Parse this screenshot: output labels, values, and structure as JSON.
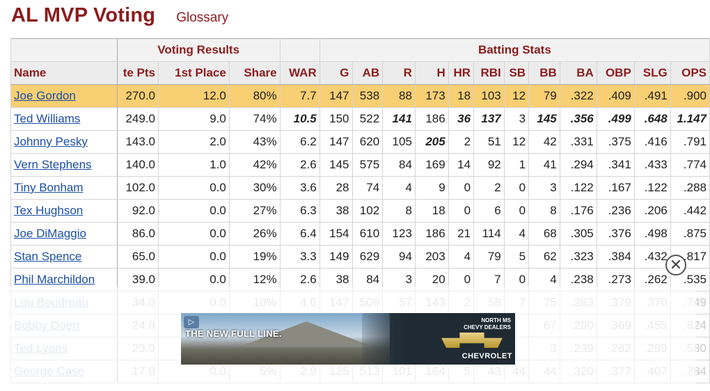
{
  "page": {
    "title": "AL MVP Voting",
    "glossary_link": "Glossary"
  },
  "table": {
    "groups": {
      "voting": "Voting Results",
      "batting": "Batting Stats"
    },
    "columns": [
      "Name",
      "te Pts",
      "1st Place",
      "Share",
      "WAR",
      "G",
      "AB",
      "R",
      "H",
      "HR",
      "RBI",
      "SB",
      "BB",
      "BA",
      "OBP",
      "SLG",
      "OPS"
    ],
    "rows": [
      {
        "name": "Joe Gordon",
        "pts": "270.0",
        "first": "12.0",
        "share": "80%",
        "war": "7.7",
        "g": "147",
        "ab": "538",
        "r": "88",
        "h": "173",
        "hr": "18",
        "rbi": "103",
        "sb": "12",
        "bb": "79",
        "ba": ".322",
        "obp": ".409",
        "slg": ".491",
        "ops": ".900"
      },
      {
        "name": "Ted Williams",
        "pts": "249.0",
        "first": "9.0",
        "share": "74%",
        "war": "10.5",
        "g": "150",
        "ab": "522",
        "r": "141",
        "h": "186",
        "hr": "36",
        "rbi": "137",
        "sb": "3",
        "bb": "145",
        "ba": ".356",
        "obp": ".499",
        "slg": ".648",
        "ops": "1.147"
      },
      {
        "name": "Johnny Pesky",
        "pts": "143.0",
        "first": "2.0",
        "share": "43%",
        "war": "6.2",
        "g": "147",
        "ab": "620",
        "r": "105",
        "h": "205",
        "hr": "2",
        "rbi": "51",
        "sb": "12",
        "bb": "42",
        "ba": ".331",
        "obp": ".375",
        "slg": ".416",
        "ops": ".791"
      },
      {
        "name": "Vern Stephens",
        "pts": "140.0",
        "first": "1.0",
        "share": "42%",
        "war": "2.6",
        "g": "145",
        "ab": "575",
        "r": "84",
        "h": "169",
        "hr": "14",
        "rbi": "92",
        "sb": "1",
        "bb": "41",
        "ba": ".294",
        "obp": ".341",
        "slg": ".433",
        "ops": ".774"
      },
      {
        "name": "Tiny Bonham",
        "pts": "102.0",
        "first": "0.0",
        "share": "30%",
        "war": "3.6",
        "g": "28",
        "ab": "74",
        "r": "4",
        "h": "9",
        "hr": "0",
        "rbi": "2",
        "sb": "0",
        "bb": "3",
        "ba": ".122",
        "obp": ".167",
        "slg": ".122",
        "ops": ".288"
      },
      {
        "name": "Tex Hughson",
        "pts": "92.0",
        "first": "0.0",
        "share": "27%",
        "war": "6.3",
        "g": "38",
        "ab": "102",
        "r": "8",
        "h": "18",
        "hr": "0",
        "rbi": "6",
        "sb": "0",
        "bb": "8",
        "ba": ".176",
        "obp": ".236",
        "slg": ".206",
        "ops": ".442"
      },
      {
        "name": "Joe DiMaggio",
        "pts": "86.0",
        "first": "0.0",
        "share": "26%",
        "war": "6.4",
        "g": "154",
        "ab": "610",
        "r": "123",
        "h": "186",
        "hr": "21",
        "rbi": "114",
        "sb": "4",
        "bb": "68",
        "ba": ".305",
        "obp": ".376",
        "slg": ".498",
        "ops": ".875"
      },
      {
        "name": "Stan Spence",
        "pts": "65.0",
        "first": "0.0",
        "share": "19%",
        "war": "3.3",
        "g": "149",
        "ab": "629",
        "r": "94",
        "h": "203",
        "hr": "4",
        "rbi": "79",
        "sb": "5",
        "bb": "62",
        "ba": ".323",
        "obp": ".384",
        "slg": ".432",
        "ops": ".817"
      },
      {
        "name": "Phil Marchildon",
        "pts": "39.0",
        "first": "0.0",
        "share": "12%",
        "war": "2.6",
        "g": "38",
        "ab": "84",
        "r": "3",
        "h": "20",
        "hr": "0",
        "rbi": "7",
        "sb": "0",
        "bb": "4",
        "ba": ".238",
        "obp": ".273",
        "slg": ".262",
        "ops": ".535"
      },
      {
        "name": "Lou Boudreau",
        "pts": "34.0",
        "first": "0.0",
        "share": "10%",
        "war": "4.6",
        "g": "147",
        "ab": "506",
        "r": "57",
        "h": "143",
        "hr": "2",
        "rbi": "58",
        "sb": "7",
        "bb": "75",
        "ba": ".283",
        "obp": ".379",
        "slg": ".370",
        "ops": ".749"
      },
      {
        "name": "Bobby Doerr",
        "pts": "24.0",
        "first": "",
        "share": "",
        "war": "",
        "g": "",
        "ab": "",
        "r": "",
        "h": "",
        "hr": "",
        "rbi": "",
        "sb": "",
        "bb": "67",
        "ba": ".290",
        "obp": ".369",
        "slg": ".455",
        "ops": ".824"
      },
      {
        "name": "Ted Lyons",
        "pts": "23.0",
        "first": "",
        "share": "",
        "war": "",
        "g": "",
        "ab": "",
        "r": "",
        "h": "",
        "hr": "",
        "rbi": "",
        "sb": "",
        "bb": "3",
        "ba": ".239",
        "obp": ".282",
        "slg": ".299",
        "ops": ".580"
      },
      {
        "name": "George Case",
        "pts": "17.0",
        "first": "0.0",
        "share": "5%",
        "war": "2.9",
        "g": "125",
        "ab": "513",
        "r": "101",
        "h": "164",
        "hr": "5",
        "rbi": "43",
        "sb": "44",
        "bb": "44",
        "ba": ".320",
        "obp": ".377",
        "slg": ".407",
        "ops": ".784"
      }
    ]
  },
  "ad": {
    "headline": "THE NEW FULL LINE.",
    "dealer_line1": "NORTH MS",
    "dealer_line2": "CHEVY DEALERS",
    "brand": "CHEVROLET",
    "adchoice": "▷",
    "close": "✕"
  }
}
